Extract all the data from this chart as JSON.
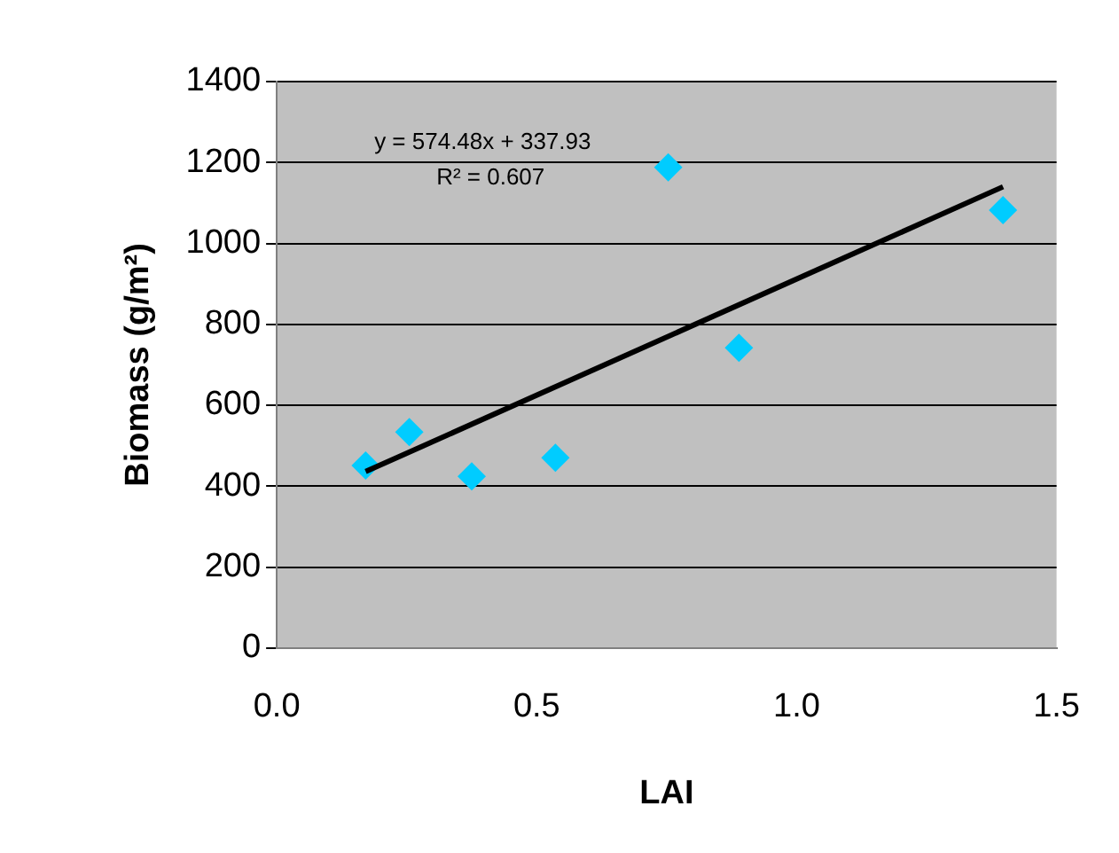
{
  "chart_data": {
    "type": "scatter",
    "xlabel": "LAI",
    "ylabel": "Biomass (g/m²)",
    "annotations": [
      "y = 574.48x + 337.93",
      "R² = 0.607"
    ],
    "series": [
      {
        "type": "scatter",
        "color": "#00ccff",
        "marker": "diamond",
        "x": [
          0.171,
          0.255,
          0.375,
          0.536,
          0.753,
          0.889,
          1.397
        ],
        "values": [
          451,
          534,
          424,
          470,
          1188,
          742,
          1082
        ]
      },
      {
        "type": "line",
        "color": "#000000",
        "marker": "none",
        "x": [
          0.171,
          1.397
        ],
        "values": [
          436,
          1140
        ]
      }
    ],
    "xlim": [
      0,
      1.5
    ],
    "xticks": [
      {
        "value": 0,
        "label": "0.0"
      },
      {
        "value": 0.5,
        "label": "0.5"
      },
      {
        "value": 1,
        "label": "1.0"
      },
      {
        "value": 1.5,
        "label": "1.5"
      }
    ],
    "ylim": [
      0,
      1400
    ],
    "yticks": [
      0,
      200,
      400,
      600,
      800,
      1000,
      1200,
      1400
    ],
    "grid": "y",
    "legend": false
  }
}
